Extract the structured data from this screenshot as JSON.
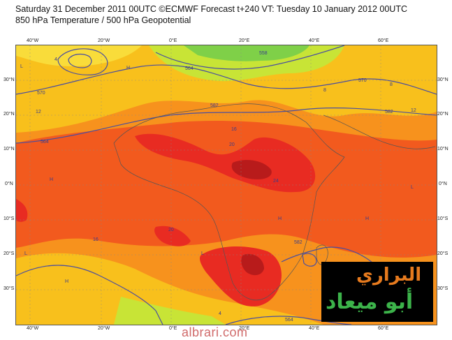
{
  "header": {
    "line1": "Saturday 31 December 2011 00UTC ©ECMWF Forecast t+240 VT: Tuesday 10 January 2012 00UTC",
    "line2": "850 hPa Temperature / 500 hPa Geopotential"
  },
  "axes": {
    "lat_labels": [
      "30°N",
      "20°N",
      "10°N",
      "0°N",
      "10°S",
      "20°S",
      "30°S"
    ],
    "lon_labels": [
      "40°W",
      "20°W",
      "0°E",
      "20°E",
      "40°E",
      "60°E"
    ]
  },
  "contour_labels": {
    "geopotential": [
      "570",
      "582",
      "564",
      "558",
      "570",
      "582",
      "564",
      "582",
      "564"
    ],
    "temperature": [
      "4",
      "8",
      "12",
      "16",
      "20",
      "24",
      "20",
      "16",
      "12",
      "8",
      "4"
    ],
    "markers": [
      "L",
      "H"
    ]
  },
  "colors": {
    "warm_max": "#b81b1b",
    "warm_high": "#e82b22",
    "warm_mid": "#f25a1e",
    "warm_low": "#f7921d",
    "mild": "#f8c01c",
    "cool": "#c8e436",
    "cold": "#7fd048",
    "contour": "#4a4ea0"
  },
  "watermark": {
    "line1": "البراري",
    "line2": "أبو ميعاد"
  },
  "footer": {
    "site": "albrari.com"
  }
}
